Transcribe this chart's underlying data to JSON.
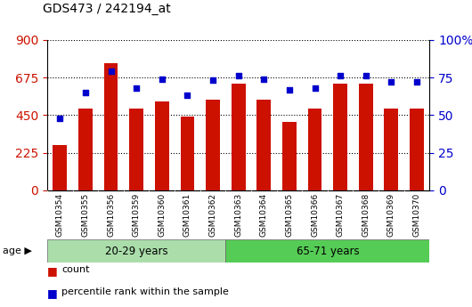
{
  "title": "GDS473 / 242194_at",
  "samples": [
    "GSM10354",
    "GSM10355",
    "GSM10356",
    "GSM10359",
    "GSM10360",
    "GSM10361",
    "GSM10362",
    "GSM10363",
    "GSM10364",
    "GSM10365",
    "GSM10366",
    "GSM10367",
    "GSM10368",
    "GSM10369",
    "GSM10370"
  ],
  "counts": [
    270,
    490,
    760,
    490,
    530,
    440,
    540,
    640,
    540,
    410,
    490,
    640,
    640,
    490,
    490
  ],
  "percentile": [
    48,
    65,
    79,
    68,
    74,
    63,
    73,
    76,
    74,
    67,
    68,
    76,
    76,
    72,
    72
  ],
  "group1_label": "20-29 years",
  "group2_label": "65-71 years",
  "group1_count": 7,
  "group2_count": 8,
  "ylim_left": [
    0,
    900
  ],
  "ylim_right": [
    0,
    100
  ],
  "yticks_left": [
    0,
    225,
    450,
    675,
    900
  ],
  "yticks_right": [
    0,
    25,
    50,
    75,
    100
  ],
  "bar_color": "#cc1100",
  "dot_color": "#0000cc",
  "group1_color": "#aaddaa",
  "group2_color": "#55cc55",
  "xtick_bg_color": "#cccccc",
  "tick_label_color_left": "#cc1100",
  "tick_label_color_right": "#0000cc",
  "legend_count_label": "count",
  "legend_pct_label": "percentile rank within the sample",
  "age_label": "age",
  "bar_width": 0.55,
  "background_color": "#ffffff",
  "plot_bg": "#ffffff"
}
